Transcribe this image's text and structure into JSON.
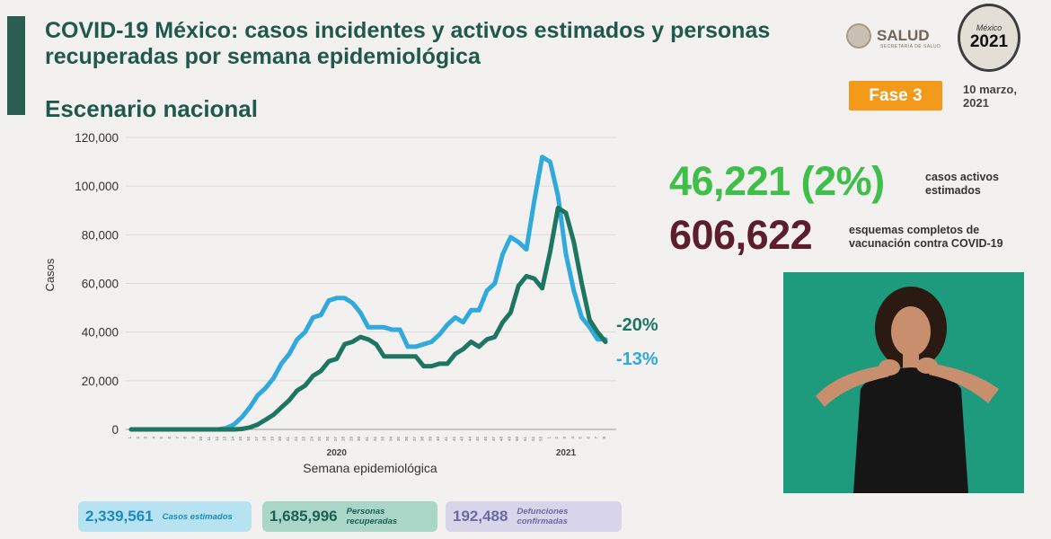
{
  "header": {
    "title": "COVID-19 México: casos incidentes y activos estimados y personas recuperadas por semana epidemiológica",
    "subtitle": "Escenario nacional",
    "phase_badge": "Fase 3",
    "date": "10 marzo, 2021",
    "logo_salud": {
      "text": "SALUD",
      "subtext": "SECRETARÍA DE SALUD"
    },
    "logo_2021": {
      "line1": "México",
      "line2": "2021"
    }
  },
  "stats": {
    "active_value": "46,221 (2%)",
    "active_label": "casos activos estimados",
    "vaccination_value": "606,622",
    "vaccination_label": "esquemas completos de vacunación contra COVID-19"
  },
  "summary": {
    "cases": {
      "value": "2,339,561",
      "label": "Casos estimados"
    },
    "recovered": {
      "value": "1,685,996",
      "label": "Personas recuperadas"
    },
    "deaths": {
      "value": "192,488",
      "label": "Defunciones confirmadas"
    }
  },
  "colors": {
    "cases": "#31a9dc",
    "active": "#1e7662",
    "green": "#3fbf49",
    "maroon": "#5c1e2c",
    "phase": "#f39a1a"
  },
  "chart_data": {
    "type": "line",
    "xlabel": "Semana epidemiológica",
    "ylabel": "Casos",
    "ylim": [
      0,
      120000
    ],
    "yticks": [
      "0",
      "20,000",
      "40,000",
      "60,000",
      "80,000",
      "100,000",
      "120,000"
    ],
    "year_labels": [
      {
        "label": "2020",
        "week_index": 26
      },
      {
        "label": "2021",
        "week_index": 55
      }
    ],
    "x": [
      "1",
      "2",
      "3",
      "4",
      "5",
      "6",
      "7",
      "8",
      "9",
      "10",
      "11",
      "12",
      "13",
      "14",
      "15",
      "16",
      "17",
      "18",
      "19",
      "20",
      "21",
      "22",
      "23",
      "24",
      "25",
      "26",
      "27",
      "28",
      "29",
      "30",
      "31",
      "32",
      "33",
      "34",
      "35",
      "36",
      "37",
      "38",
      "39",
      "40",
      "41",
      "42",
      "43",
      "44",
      "45",
      "46",
      "47",
      "48",
      "49",
      "50",
      "51",
      "52",
      "53",
      "1",
      "2",
      "3",
      "4",
      "5",
      "6",
      "7",
      "8"
    ],
    "series": [
      {
        "key": "cases",
        "color": "#31a9dc",
        "annotation": "-13%",
        "values": [
          0,
          0,
          0,
          0,
          0,
          0,
          0,
          0,
          0,
          0,
          0,
          0,
          500,
          2000,
          5000,
          9000,
          14000,
          17000,
          21000,
          27000,
          31000,
          37000,
          40000,
          46000,
          47000,
          53000,
          54000,
          54000,
          52000,
          48000,
          42000,
          42000,
          42000,
          41000,
          41000,
          34000,
          34000,
          35000,
          36000,
          39000,
          43000,
          46000,
          44000,
          49000,
          49000,
          57000,
          60000,
          72000,
          79000,
          77000,
          74000,
          94000,
          112000,
          110000,
          96000,
          72000,
          57000,
          46000,
          42000,
          37000,
          37000
        ]
      },
      {
        "key": "active",
        "color": "#1e7662",
        "annotation": "-20%",
        "values": [
          0,
          0,
          0,
          0,
          0,
          0,
          0,
          0,
          0,
          0,
          0,
          0,
          0,
          0,
          200,
          800,
          2000,
          4000,
          6000,
          9000,
          12000,
          16000,
          18000,
          22000,
          24000,
          28000,
          29000,
          35000,
          36000,
          38000,
          37000,
          35000,
          30000,
          30000,
          30000,
          30000,
          30000,
          26000,
          26000,
          27000,
          27000,
          31000,
          33000,
          36000,
          34000,
          37000,
          38000,
          44000,
          48000,
          59000,
          63000,
          62000,
          58000,
          73000,
          91000,
          89000,
          77000,
          60000,
          45000,
          40000,
          36000
        ]
      }
    ]
  }
}
